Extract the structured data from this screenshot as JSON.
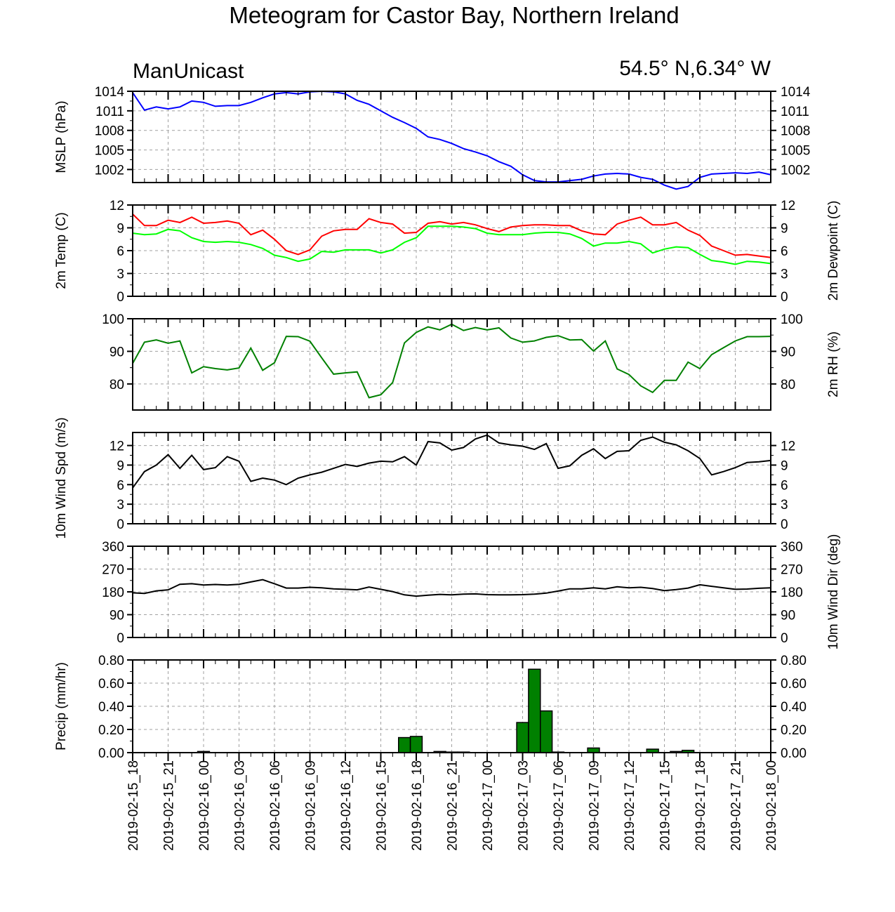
{
  "title": "Meteogram for Castor Bay, Northern Ireland",
  "left_subtitle": "ManUnicast",
  "right_subtitle": "54.5° N,6.34° W",
  "time_labels": [
    "2019-02-15_18",
    "2019-02-15_21",
    "2019-02-16_00",
    "2019-02-16_03",
    "2019-02-16_06",
    "2019-02-16_09",
    "2019-02-16_12",
    "2019-02-16_15",
    "2019-02-16_18",
    "2019-02-16_21",
    "2019-02-17_00",
    "2019-02-17_03",
    "2019-02-17_06",
    "2019-02-17_09",
    "2019-02-17_12",
    "2019-02-17_15",
    "2019-02-17_18",
    "2019-02-17_21",
    "2019-02-18_00"
  ],
  "colors": {
    "mslp": "#0000ff",
    "temp": "#ff0000",
    "dewpoint": "#00ff00",
    "rh": "#008000",
    "wind": "#000000",
    "precip_fill": "#008000"
  },
  "chart_data": [
    {
      "type": "line",
      "id": "mslp",
      "ylabel_left": "MSLP (hPa)",
      "ylabel_right": "",
      "ylim": [
        1000,
        1014
      ],
      "yticks": [
        1002,
        1005,
        1008,
        1011,
        1014
      ],
      "ytick_labels": [
        "1002",
        "1005",
        "1008",
        "1011",
        "1014"
      ],
      "grid": true,
      "series": [
        {
          "color": "#0000ff",
          "values": [
            1013.8,
            1011.1,
            1011.6,
            1011.3,
            1011.6,
            1012.5,
            1012.3,
            1011.7,
            1011.8,
            1011.8,
            1012.3,
            1013.0,
            1013.6,
            1013.8,
            1013.6,
            1013.9,
            1014.0,
            1013.9,
            1013.6,
            1012.6,
            1012.0,
            1011.0,
            1010.0,
            1009.2,
            1008.3,
            1007.0,
            1006.6,
            1006.0,
            1005.2,
            1004.7,
            1004.1,
            1003.2,
            1002.5,
            1001.2,
            1000.3,
            1000.1,
            1000.1,
            1000.3,
            1000.5,
            1001.0,
            1001.3,
            1001.4,
            1001.3,
            1000.8,
            1000.5,
            999.6,
            999.0,
            999.4,
            1000.8,
            1001.3,
            1001.4,
            1001.5,
            1001.4,
            1001.6,
            1001.2
          ]
        }
      ]
    },
    {
      "type": "line",
      "id": "temperature",
      "ylabel_left": "2m Temp (C)",
      "ylabel_right": "2m Dewpoint (C)",
      "ylim": [
        0,
        12
      ],
      "yticks": [
        0,
        3,
        6,
        9,
        12
      ],
      "ytick_labels": [
        "0",
        "3",
        "6",
        "9",
        "12"
      ],
      "grid": true,
      "series": [
        {
          "color": "#ff0000",
          "values": [
            10.8,
            9.3,
            9.3,
            10.0,
            9.7,
            10.4,
            9.6,
            9.7,
            9.9,
            9.6,
            8.1,
            8.7,
            7.5,
            6.0,
            5.5,
            6.1,
            7.9,
            8.6,
            8.8,
            8.8,
            10.2,
            9.7,
            9.5,
            8.3,
            8.4,
            9.6,
            9.8,
            9.5,
            9.7,
            9.4,
            8.9,
            8.5,
            9.1,
            9.3,
            9.4,
            9.4,
            9.3,
            9.3,
            8.6,
            8.2,
            8.1,
            9.5,
            10.0,
            10.4,
            9.4,
            9.4,
            9.7,
            8.7,
            8.0,
            6.6,
            6.0,
            5.4,
            5.5,
            5.3,
            5.1
          ]
        },
        {
          "color": "#00ff00",
          "values": [
            8.3,
            8.1,
            8.2,
            8.8,
            8.6,
            7.7,
            7.2,
            7.1,
            7.2,
            7.1,
            6.8,
            6.3,
            5.4,
            5.1,
            4.6,
            4.9,
            5.9,
            5.8,
            6.1,
            6.1,
            6.1,
            5.7,
            6.1,
            7.1,
            7.7,
            9.2,
            9.2,
            9.2,
            9.1,
            8.9,
            8.3,
            8.1,
            8.1,
            8.1,
            8.3,
            8.4,
            8.4,
            8.2,
            7.6,
            6.6,
            7.0,
            7.0,
            7.2,
            6.9,
            5.7,
            6.2,
            6.5,
            6.4,
            5.5,
            4.7,
            4.5,
            4.2,
            4.6,
            4.5,
            4.3
          ]
        }
      ]
    },
    {
      "type": "line",
      "id": "rh",
      "ylabel_left": "",
      "ylabel_right": "2m RH (%)",
      "ylim": [
        72,
        100
      ],
      "yticks": [
        80,
        90,
        100
      ],
      "ytick_labels": [
        "80",
        "90",
        "100"
      ],
      "grid": true,
      "series": [
        {
          "color": "#008000",
          "values": [
            86.3,
            92.8,
            93.5,
            92.5,
            93.2,
            83.4,
            85.3,
            84.7,
            84.3,
            84.9,
            91.0,
            84.2,
            86.5,
            94.6,
            94.5,
            93.1,
            88.0,
            83.0,
            83.4,
            83.7,
            75.8,
            76.7,
            80.4,
            92.6,
            95.8,
            97.5,
            96.6,
            98.3,
            96.4,
            97.3,
            96.6,
            97.2,
            94.1,
            92.8,
            93.2,
            94.3,
            94.8,
            93.5,
            93.6,
            90.1,
            93.2,
            84.6,
            82.9,
            79.4,
            77.4,
            81.1,
            81.1,
            86.7,
            84.7,
            89.0,
            91.1,
            93.2,
            94.5,
            94.5,
            94.6
          ]
        }
      ]
    },
    {
      "type": "line",
      "id": "wind_speed",
      "ylabel_left": "10m Wind Spd (m/s)",
      "ylabel_right": "",
      "ylim": [
        0,
        14
      ],
      "yticks": [
        0,
        3,
        6,
        9,
        12
      ],
      "ytick_labels": [
        "0",
        "3",
        "6",
        "9",
        "12"
      ],
      "grid": true,
      "series": [
        {
          "color": "#000000",
          "values": [
            5.5,
            8.0,
            9.0,
            10.6,
            8.5,
            10.5,
            8.3,
            8.6,
            10.3,
            9.6,
            6.5,
            7.0,
            6.7,
            6.0,
            7.0,
            7.5,
            7.9,
            8.5,
            9.1,
            8.8,
            9.3,
            9.6,
            9.5,
            10.3,
            9.0,
            12.6,
            12.4,
            11.3,
            11.7,
            13.0,
            13.6,
            12.4,
            12.1,
            11.9,
            11.4,
            12.3,
            8.5,
            8.9,
            10.5,
            11.5,
            10.0,
            11.1,
            11.2,
            12.8,
            13.3,
            12.5,
            12.1,
            11.2,
            10.0,
            7.5,
            8.0,
            8.6,
            9.4,
            9.5,
            9.7
          ]
        }
      ]
    },
    {
      "type": "line",
      "id": "wind_direction",
      "ylabel_left": "",
      "ylabel_right": "10m Wind Dir (deg)",
      "ylim": [
        0,
        360
      ],
      "yticks": [
        0,
        90,
        180,
        270,
        360
      ],
      "ytick_labels": [
        "0",
        "90",
        "180",
        "270",
        "360"
      ],
      "grid": true,
      "series": [
        {
          "color": "#000000",
          "values": [
            176,
            174,
            184,
            188,
            210,
            212,
            207,
            209,
            207,
            210,
            219,
            228,
            212,
            195,
            195,
            198,
            196,
            192,
            190,
            188,
            199,
            190,
            181,
            168,
            163,
            167,
            170,
            168,
            171,
            172,
            169,
            168,
            168,
            169,
            171,
            175,
            183,
            192,
            192,
            196,
            192,
            200,
            196,
            198,
            193,
            185,
            189,
            195,
            208,
            202,
            196,
            190,
            191,
            194,
            196
          ]
        }
      ]
    },
    {
      "type": "bar",
      "id": "precip",
      "ylabel_left": "Precip (mm/hr)",
      "ylabel_right": "",
      "ylim": [
        0,
        0.8
      ],
      "yticks": [
        0,
        0.2,
        0.4,
        0.6,
        0.8
      ],
      "ytick_labels": [
        "0.00",
        "0.20",
        "0.40",
        "0.60",
        "0.80"
      ],
      "grid": true,
      "series": [
        {
          "color": "#008000",
          "values": [
            0,
            0,
            0,
            0,
            0,
            0,
            0.01,
            0,
            0,
            0,
            0,
            0,
            0,
            0,
            0,
            0,
            0,
            0,
            0,
            0,
            0,
            0,
            0,
            0.13,
            0.14,
            0,
            0.01,
            0.005,
            0.005,
            0,
            0,
            0,
            0,
            0.26,
            0.72,
            0.36,
            0.005,
            0,
            0,
            0.04,
            0,
            0,
            0,
            0,
            0.03,
            0,
            0.01,
            0.02,
            0,
            0,
            0,
            0,
            0,
            0,
            0
          ]
        }
      ]
    }
  ]
}
